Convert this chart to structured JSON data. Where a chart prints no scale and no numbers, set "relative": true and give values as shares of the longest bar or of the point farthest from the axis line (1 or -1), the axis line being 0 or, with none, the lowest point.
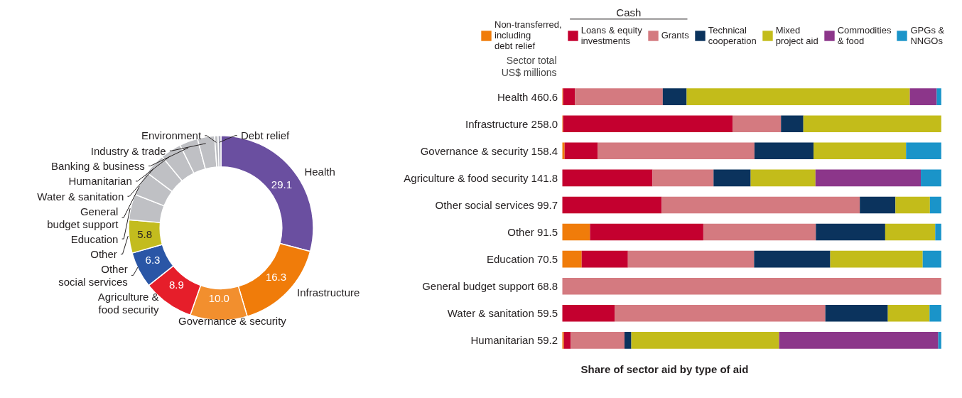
{
  "chart_data": [
    {
      "type": "donut",
      "categories": [
        "Health",
        "Infrastructure",
        "Governance & security",
        "Agriculture &\nfood security",
        "Other\nsocial services",
        "Other",
        "Education",
        "General\nbudget support",
        "Water & sanitation",
        "Humanitarian",
        "Banking & business",
        "Industry & trade",
        "Environment",
        "Debt relief"
      ],
      "values": [
        29.1,
        16.3,
        10.0,
        8.9,
        6.3,
        5.8,
        4.5,
        4.3,
        3.8,
        3.7,
        3.2,
        3.0,
        0.6,
        0.5
      ],
      "colors": [
        "#6a4fa0",
        "#f07c0a",
        "#f28f2e",
        "#e61e2a",
        "#2a56a6",
        "#c3bc1e",
        "#bfc0c4",
        "#bfc0c4",
        "#bfc0c4",
        "#bfc0c4",
        "#bfc0c4",
        "#bfc0c4",
        "#bfc0c4",
        "#a9a9b8"
      ],
      "value_labels": [
        "29.1",
        "16.3",
        "10.0",
        "8.9",
        "6.3",
        "5.8",
        null,
        null,
        null,
        null,
        null,
        null,
        null,
        null
      ]
    },
    {
      "type": "bar",
      "orientation": "horizontal",
      "stacked": true,
      "relative": true,
      "legend": "top",
      "xlabel": "Share of sector aid by type of aid",
      "annotations": [
        "Cash",
        "Sector total\nUS$ millions"
      ],
      "categories": [
        "Health 460.6",
        "Infrastructure 258.0",
        "Governance & security 158.4",
        "Agriculture & food security 141.8",
        "Other social services 99.7",
        "Other 91.5",
        "Education 70.5",
        "General budget support 68.8",
        "Water & sanitation 59.5",
        "Humanitarian 59.2"
      ],
      "series": [
        {
          "name": "Non-transferred,\nincluding\ndebt relief",
          "color": "#f07c0a",
          "values": [
            0.002,
            0.002,
            0.006,
            0,
            0,
            0.073,
            0.051,
            0,
            0,
            0.004
          ]
        },
        {
          "name": "Loans & equity\ninvestments",
          "color": "#c4002f",
          "values": [
            0.031,
            0.447,
            0.087,
            0.238,
            0.262,
            0.299,
            0.122,
            0,
            0.138,
            0.018
          ]
        },
        {
          "name": "Grants",
          "color": "#d47a80",
          "values": [
            0.232,
            0.128,
            0.414,
            0.161,
            0.523,
            0.297,
            0.333,
            1.0,
            0.556,
            0.142
          ]
        },
        {
          "name": "Technical\ncooperation",
          "color": "#0b335d",
          "values": [
            0.063,
            0.059,
            0.156,
            0.098,
            0.094,
            0.183,
            0.201,
            0,
            0.165,
            0.018
          ]
        },
        {
          "name": "Mixed\nproject aid",
          "color": "#c3bc1a",
          "values": [
            0.589,
            0.364,
            0.244,
            0.171,
            0.091,
            0.132,
            0.244,
            0,
            0.11,
            0.39
          ]
        },
        {
          "name": "Commodities\n& food",
          "color": "#8c368a",
          "values": [
            0.071,
            0,
            0,
            0.278,
            0,
            0,
            0,
            0,
            0,
            0.42
          ]
        },
        {
          "name": "GPGs &\nNNGOs",
          "color": "#1a94c9",
          "values": [
            0.012,
            0,
            0.093,
            0.054,
            0.03,
            0.016,
            0.049,
            0,
            0.031,
            0.008
          ]
        }
      ]
    }
  ]
}
